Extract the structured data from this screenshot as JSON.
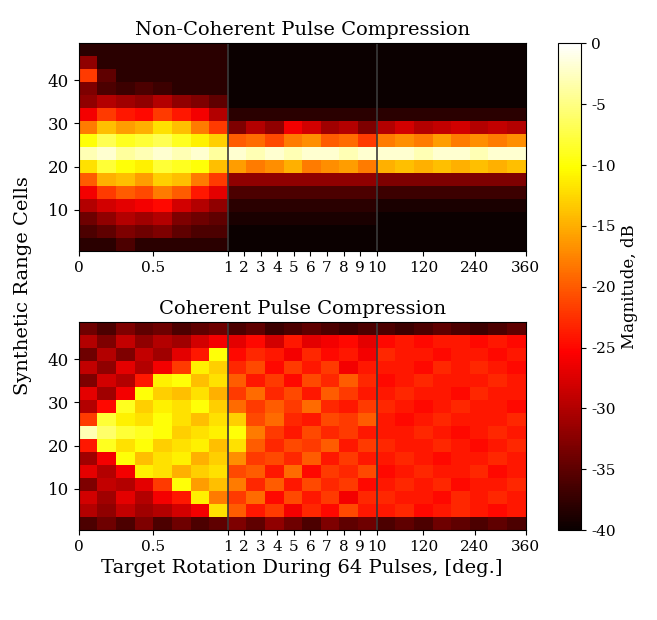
{
  "chart_data": [
    {
      "type": "heatmap",
      "title": "Non-Coherent Pulse Compression",
      "ylabel": "Synthetic Range Cells",
      "color": "hot",
      "x_edges": [
        0,
        0.125,
        0.25,
        0.375,
        0.5,
        0.625,
        0.75,
        0.875,
        1,
        2.125,
        3.25,
        4.375,
        5.5,
        6.625,
        7.75,
        8.875,
        10,
        53.75,
        97.5,
        141.25,
        185,
        228.75,
        272.5,
        316.25,
        360
      ],
      "y_edges": [
        0.5,
        3.5,
        6.5,
        9.5,
        12.5,
        15.5,
        18.5,
        21.5,
        24.5,
        27.5,
        30.5,
        33.5,
        36.5,
        39.5,
        42.5,
        45.5,
        48.5
      ],
      "x_breaks": [
        1,
        10
      ],
      "xlim": [
        0,
        360
      ],
      "ylim": [
        0.5,
        48.5
      ],
      "xticks": [
        0,
        0.5,
        1,
        2,
        3,
        4,
        5,
        6,
        7,
        8,
        9,
        10,
        120,
        240,
        360
      ],
      "yticks": [
        10,
        20,
        30,
        40
      ],
      "colorbar": {
        "label": "Magnitude, dB",
        "range": [
          -40,
          0
        ],
        "ticks": [
          0,
          -5,
          -10,
          -15,
          -20,
          -25,
          -30,
          -35,
          -40
        ]
      },
      "cells": [
        [
          -38,
          -38,
          -36,
          -38,
          -38,
          -38,
          -38,
          -38,
          -40,
          -40,
          -40,
          -40,
          -40,
          -40,
          -40,
          -40,
          -40,
          -40,
          -40,
          -40,
          -40,
          -40,
          -40,
          -40
        ],
        [
          -36,
          -35,
          -33,
          -34,
          -33,
          -35,
          -36,
          -36,
          -40,
          -40,
          -40,
          -40,
          -40,
          -40,
          -40,
          -40,
          -40,
          -40,
          -40,
          -40,
          -40,
          -40,
          -40,
          -40
        ],
        [
          -34,
          -32,
          -30,
          -31,
          -30,
          -33,
          -34,
          -35,
          -39,
          -39,
          -39,
          -39,
          -39,
          -39,
          -39,
          -39,
          -40,
          -40,
          -40,
          -40,
          -40,
          -40,
          -40,
          -40
        ],
        [
          -30,
          -28,
          -27,
          -26,
          -25,
          -28,
          -30,
          -32,
          -38,
          -38,
          -38,
          -38,
          -38,
          -38,
          -38,
          -38,
          -39,
          -39,
          -39,
          -39,
          -39,
          -39,
          -39,
          -39
        ],
        [
          -26,
          -22,
          -20,
          -21,
          -18,
          -20,
          -24,
          -27,
          -36,
          -36,
          -36,
          -36,
          -36,
          -36,
          -36,
          -36,
          -37,
          -37,
          -37,
          -37,
          -37,
          -37,
          -37,
          -37
        ],
        [
          -20,
          -15,
          -14,
          -16,
          -13,
          -14,
          -18,
          -22,
          -32,
          -32,
          -32,
          -32,
          -32,
          -32,
          -32,
          -32,
          -33,
          -33,
          -33,
          -33,
          -33,
          -33,
          -33,
          -33
        ],
        [
          -12,
          -8,
          -10,
          -11,
          -8,
          -9,
          -10,
          -14,
          -16,
          -18,
          -17,
          -15,
          -18,
          -17,
          -16,
          -18,
          -15,
          -14,
          -15,
          -14,
          -15,
          -14,
          -15,
          -14
        ],
        [
          -3,
          -2,
          -4,
          -3,
          -2,
          -3,
          -2,
          -4,
          -2,
          -3,
          -2,
          -3,
          -2,
          -2,
          -3,
          -2,
          -2,
          -2,
          -3,
          -2,
          -2,
          -3,
          -2,
          -2
        ],
        [
          -10,
          -7,
          -9,
          -8,
          -7,
          -9,
          -11,
          -13,
          -20,
          -19,
          -21,
          -18,
          -17,
          -20,
          -19,
          -22,
          -18,
          -17,
          -18,
          -16,
          -18,
          -17,
          -18,
          -17
        ],
        [
          -18,
          -14,
          -16,
          -15,
          -12,
          -14,
          -18,
          -22,
          -33,
          -30,
          -32,
          -26,
          -28,
          -31,
          -30,
          -33,
          -30,
          -28,
          -30,
          -29,
          -28,
          -30,
          -29,
          -30
        ],
        [
          -26,
          -22,
          -24,
          -25,
          -22,
          -24,
          -26,
          -30,
          -38,
          -38,
          -38,
          -38,
          -38,
          -38,
          -38,
          -38,
          -38,
          -38,
          -38,
          -38,
          -38,
          -38,
          -38,
          -38
        ],
        [
          -32,
          -30,
          -31,
          -32,
          -30,
          -32,
          -33,
          -35,
          -40,
          -40,
          -40,
          -40,
          -40,
          -40,
          -40,
          -40,
          -40,
          -40,
          -40,
          -40,
          -40,
          -40,
          -40,
          -40
        ],
        [
          -33,
          -36,
          -37,
          -36,
          -37,
          -38,
          -38,
          -38,
          -40,
          -40,
          -40,
          -40,
          -40,
          -40,
          -40,
          -40,
          -40,
          -40,
          -40,
          -40,
          -40,
          -40,
          -40,
          -40
        ],
        [
          -22,
          -35,
          -38,
          -38,
          -38,
          -38,
          -38,
          -38,
          -40,
          -40,
          -40,
          -40,
          -40,
          -40,
          -40,
          -40,
          -40,
          -40,
          -40,
          -40,
          -40,
          -40,
          -40,
          -40
        ],
        [
          -32,
          -38,
          -38,
          -38,
          -38,
          -38,
          -38,
          -38,
          -40,
          -40,
          -40,
          -40,
          -40,
          -40,
          -40,
          -40,
          -40,
          -40,
          -40,
          -40,
          -40,
          -40,
          -40,
          -40
        ],
        [
          -38,
          -38,
          -38,
          -38,
          -38,
          -38,
          -38,
          -38,
          -40,
          -40,
          -40,
          -40,
          -40,
          -40,
          -40,
          -40,
          -40,
          -40,
          -40,
          -40,
          -40,
          -40,
          -40,
          -40
        ]
      ]
    },
    {
      "type": "heatmap",
      "title": "Coherent Pulse Compression",
      "xlabel": "Target Rotation During 64 Pulses, [deg.]",
      "color": "hot",
      "x_edges": [
        0,
        0.125,
        0.25,
        0.375,
        0.5,
        0.625,
        0.75,
        0.875,
        1,
        2.125,
        3.25,
        4.375,
        5.5,
        6.625,
        7.75,
        8.875,
        10,
        53.75,
        97.5,
        141.25,
        185,
        228.75,
        272.5,
        316.25,
        360
      ],
      "y_edges": [
        0.5,
        3.5,
        6.5,
        9.5,
        12.5,
        15.5,
        18.5,
        21.5,
        24.5,
        27.5,
        30.5,
        33.5,
        36.5,
        39.5,
        42.5,
        45.5,
        48.5
      ],
      "x_breaks": [
        1,
        10
      ],
      "xlim": [
        0,
        360
      ],
      "ylim": [
        0.5,
        48.5
      ],
      "xticks": [
        0,
        0.5,
        1,
        2,
        3,
        4,
        5,
        6,
        7,
        8,
        9,
        10,
        120,
        240,
        360
      ],
      "yticks": [
        10,
        20,
        30,
        40
      ],
      "cells": [
        [
          -36,
          -34,
          -36,
          -33,
          -36,
          -34,
          -36,
          -35,
          -33,
          -35,
          -32,
          -34,
          -36,
          -33,
          -35,
          -34,
          -36,
          -35,
          -36,
          -34,
          -35,
          -36,
          -35,
          -36
        ],
        [
          -30,
          -32,
          -29,
          -31,
          -30,
          -28,
          -26,
          -12,
          -20,
          -24,
          -22,
          -26,
          -23,
          -25,
          -21,
          -24,
          -24,
          -23,
          -25,
          -24,
          -23,
          -24,
          -25,
          -24
        ],
        [
          -28,
          -31,
          -27,
          -30,
          -26,
          -24,
          -11,
          -18,
          -22,
          -19,
          -25,
          -21,
          -24,
          -22,
          -26,
          -23,
          -23,
          -24,
          -24,
          -25,
          -23,
          -24,
          -23,
          -24
        ],
        [
          -33,
          -29,
          -30,
          -27,
          -22,
          -10,
          -16,
          -14,
          -18,
          -23,
          -20,
          -24,
          -21,
          -23,
          -22,
          -25,
          -24,
          -23,
          -24,
          -23,
          -25,
          -24,
          -24,
          -23
        ],
        [
          -27,
          -30,
          -26,
          -11,
          -12,
          -15,
          -13,
          -12,
          -21,
          -20,
          -24,
          -19,
          -25,
          -22,
          -23,
          -21,
          -25,
          -24,
          -23,
          -24,
          -24,
          -23,
          -25,
          -24
        ],
        [
          -31,
          -26,
          -10,
          -14,
          -12,
          -11,
          -15,
          -13,
          -17,
          -22,
          -21,
          -23,
          -20,
          -24,
          -22,
          -24,
          -24,
          -23,
          -24,
          -25,
          -24,
          -24,
          -23,
          -24
        ],
        [
          -24,
          -9,
          -12,
          -10,
          -13,
          -12,
          -11,
          -14,
          -12,
          -20,
          -23,
          -21,
          -22,
          -20,
          -24,
          -22,
          -23,
          -24,
          -24,
          -23,
          -24,
          -25,
          -24,
          -23
        ],
        [
          -3,
          -6,
          -8,
          -9,
          -10,
          -13,
          -12,
          -11,
          -10,
          -18,
          -22,
          -24,
          -21,
          -23,
          -22,
          -24,
          -24,
          -24,
          -23,
          -24,
          -25,
          -24,
          -23,
          -24
        ],
        [
          -22,
          -8,
          -11,
          -12,
          -10,
          -12,
          -14,
          -12,
          -13,
          -21,
          -19,
          -23,
          -24,
          -21,
          -22,
          -20,
          -24,
          -25,
          -24,
          -23,
          -24,
          -24,
          -24,
          -23
        ],
        [
          -30,
          -25,
          -9,
          -13,
          -11,
          -12,
          -10,
          -13,
          -19,
          -22,
          -20,
          -22,
          -19,
          -23,
          -24,
          -22,
          -23,
          -24,
          -25,
          -24,
          -23,
          -24,
          -24,
          -25
        ],
        [
          -27,
          -31,
          -26,
          -10,
          -13,
          -14,
          -12,
          -15,
          -22,
          -19,
          -23,
          -21,
          -24,
          -20,
          -22,
          -24,
          -24,
          -23,
          -24,
          -24,
          -25,
          -23,
          -24,
          -24
        ],
        [
          -33,
          -28,
          -30,
          -24,
          -11,
          -10,
          -14,
          -12,
          -20,
          -24,
          -22,
          -25,
          -21,
          -23,
          -20,
          -23,
          -25,
          -24,
          -23,
          -24,
          -24,
          -24,
          -23,
          -24
        ],
        [
          -29,
          -32,
          -27,
          -30,
          -26,
          -22,
          -11,
          -13,
          -23,
          -21,
          -25,
          -22,
          -24,
          -22,
          -26,
          -24,
          -24,
          -24,
          -25,
          -23,
          -24,
          -23,
          -24,
          -25
        ],
        [
          -34,
          -30,
          -33,
          -29,
          -31,
          -27,
          -24,
          -10,
          -25,
          -23,
          -24,
          -26,
          -23,
          -25,
          -24,
          -26,
          -23,
          -24,
          -24,
          -25,
          -24,
          -24,
          -25,
          -24
        ],
        [
          -30,
          -33,
          -29,
          -32,
          -30,
          -31,
          -28,
          -26,
          -27,
          -25,
          -28,
          -24,
          -27,
          -26,
          -25,
          -27,
          -25,
          -24,
          -25,
          -24,
          -24,
          -25,
          -24,
          -25
        ],
        [
          -34,
          -36,
          -33,
          -35,
          -34,
          -36,
          -35,
          -34,
          -36,
          -35,
          -37,
          -36,
          -35,
          -36,
          -37,
          -36,
          -36,
          -37,
          -36,
          -35,
          -36,
          -37,
          -36,
          -35
        ]
      ]
    }
  ]
}
